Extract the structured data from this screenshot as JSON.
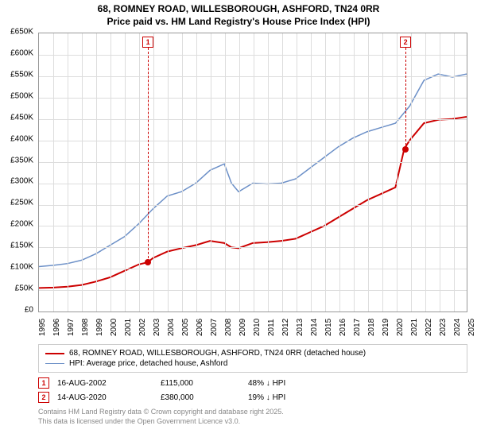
{
  "title_line1": "68, ROMNEY ROAD, WILLESBOROUGH, ASHFORD, TN24 0RR",
  "title_line2": "Price paid vs. HM Land Registry's House Price Index (HPI)",
  "chart": {
    "type": "line",
    "background_color": "#ffffff",
    "grid_color": "#dddddd",
    "border_color": "#999999",
    "x_years": [
      1995,
      1996,
      1997,
      1998,
      1999,
      2000,
      2001,
      2002,
      2003,
      2004,
      2005,
      2006,
      2007,
      2008,
      2009,
      2010,
      2011,
      2012,
      2013,
      2014,
      2015,
      2016,
      2017,
      2018,
      2019,
      2020,
      2021,
      2022,
      2023,
      2024,
      2025
    ],
    "ylim": [
      0,
      650000
    ],
    "ytick_step": 50000,
    "ytick_labels": [
      "£0",
      "£50K",
      "£100K",
      "£150K",
      "£200K",
      "£250K",
      "£300K",
      "£350K",
      "£400K",
      "£450K",
      "£500K",
      "£550K",
      "£600K",
      "£650K"
    ],
    "series": [
      {
        "name": "price_paid",
        "label": "68, ROMNEY ROAD, WILLESBOROUGH, ASHFORD, TN24 0RR (detached house)",
        "color": "#cc0000",
        "line_width": 2,
        "points": [
          [
            1995,
            55000
          ],
          [
            1996,
            56000
          ],
          [
            1997,
            58000
          ],
          [
            1998,
            62000
          ],
          [
            1999,
            70000
          ],
          [
            2000,
            80000
          ],
          [
            2001,
            95000
          ],
          [
            2002,
            110000
          ],
          [
            2002.62,
            115000
          ],
          [
            2003,
            125000
          ],
          [
            2004,
            140000
          ],
          [
            2005,
            148000
          ],
          [
            2006,
            155000
          ],
          [
            2007,
            165000
          ],
          [
            2008,
            160000
          ],
          [
            2008.5,
            150000
          ],
          [
            2009,
            148000
          ],
          [
            2010,
            160000
          ],
          [
            2011,
            162000
          ],
          [
            2012,
            165000
          ],
          [
            2013,
            170000
          ],
          [
            2014,
            185000
          ],
          [
            2015,
            200000
          ],
          [
            2016,
            220000
          ],
          [
            2017,
            240000
          ],
          [
            2018,
            260000
          ],
          [
            2019,
            275000
          ],
          [
            2020,
            290000
          ],
          [
            2020.62,
            380000
          ],
          [
            2021,
            400000
          ],
          [
            2022,
            440000
          ],
          [
            2023,
            448000
          ],
          [
            2024,
            450000
          ],
          [
            2025,
            455000
          ]
        ]
      },
      {
        "name": "hpi",
        "label": "HPI: Average price, detached house, Ashford",
        "color": "#6b8fc7",
        "line_width": 1.5,
        "points": [
          [
            1995,
            105000
          ],
          [
            1996,
            108000
          ],
          [
            1997,
            112000
          ],
          [
            1998,
            120000
          ],
          [
            1999,
            135000
          ],
          [
            2000,
            155000
          ],
          [
            2001,
            175000
          ],
          [
            2002,
            205000
          ],
          [
            2003,
            240000
          ],
          [
            2004,
            270000
          ],
          [
            2005,
            280000
          ],
          [
            2006,
            300000
          ],
          [
            2007,
            330000
          ],
          [
            2008,
            345000
          ],
          [
            2008.5,
            300000
          ],
          [
            2009,
            280000
          ],
          [
            2010,
            300000
          ],
          [
            2011,
            298000
          ],
          [
            2012,
            300000
          ],
          [
            2013,
            310000
          ],
          [
            2014,
            335000
          ],
          [
            2015,
            360000
          ],
          [
            2016,
            385000
          ],
          [
            2017,
            405000
          ],
          [
            2018,
            420000
          ],
          [
            2019,
            430000
          ],
          [
            2020,
            440000
          ],
          [
            2021,
            480000
          ],
          [
            2022,
            540000
          ],
          [
            2023,
            555000
          ],
          [
            2024,
            548000
          ],
          [
            2025,
            555000
          ]
        ]
      }
    ],
    "markers": [
      {
        "id": "1",
        "year": 2002.62,
        "price": 115000,
        "color": "#cc0000"
      },
      {
        "id": "2",
        "year": 2020.62,
        "price": 380000,
        "color": "#cc0000"
      }
    ]
  },
  "legend": {
    "items": [
      {
        "color": "#cc0000",
        "width": 2,
        "text": "68, ROMNEY ROAD, WILLESBOROUGH, ASHFORD, TN24 0RR (detached house)"
      },
      {
        "color": "#6b8fc7",
        "width": 1.5,
        "text": "HPI: Average price, detached house, Ashford"
      }
    ]
  },
  "marker_rows": [
    {
      "id": "1",
      "color": "#cc0000",
      "date": "16-AUG-2002",
      "price": "£115,000",
      "delta": "48% ↓ HPI"
    },
    {
      "id": "2",
      "color": "#cc0000",
      "date": "14-AUG-2020",
      "price": "£380,000",
      "delta": "19% ↓ HPI"
    }
  ],
  "footer_line1": "Contains HM Land Registry data © Crown copyright and database right 2025.",
  "footer_line2": "This data is licensed under the Open Government Licence v3.0."
}
